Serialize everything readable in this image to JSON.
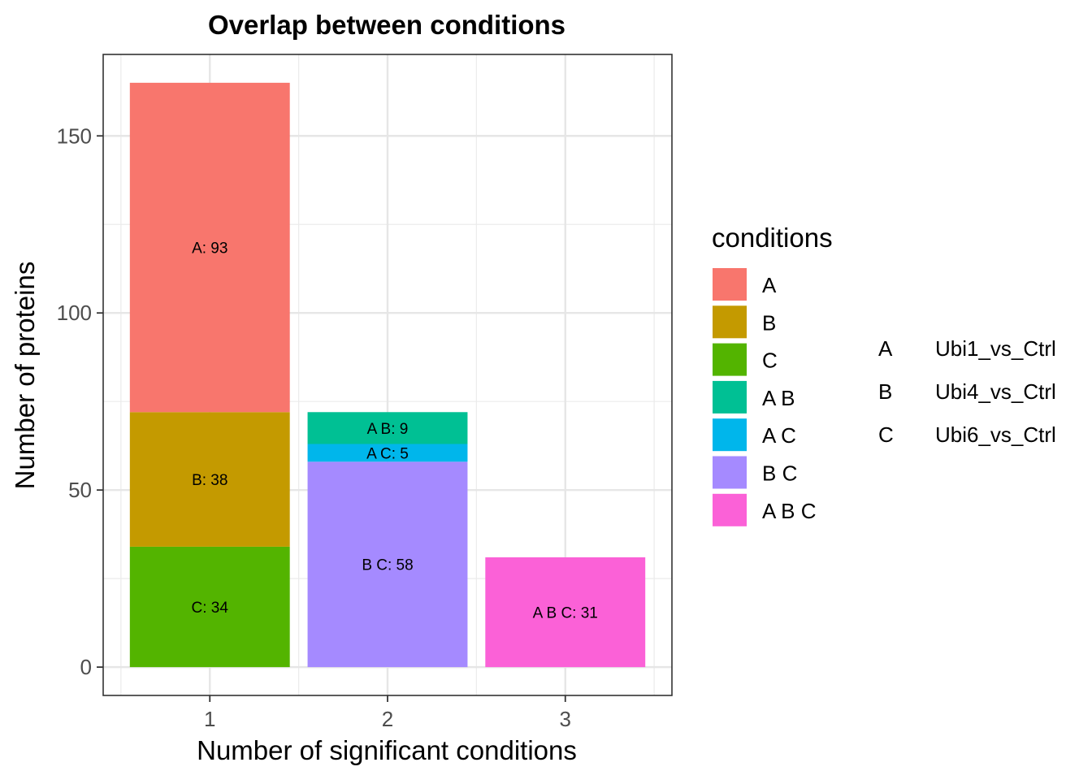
{
  "chart_data": {
    "type": "bar",
    "stacked": true,
    "title": "Overlap between conditions",
    "xlabel": "Number of significant conditions",
    "ylabel": "Number of proteins",
    "categories": [
      "1",
      "2",
      "3"
    ],
    "yticks": [
      0,
      50,
      100,
      150
    ],
    "ylim": [
      -8,
      173
    ],
    "grid": true,
    "legend_position": "right",
    "legend_title": "conditions",
    "segments": [
      {
        "category": "1",
        "condition": "C",
        "value": 34,
        "label": "C: 34"
      },
      {
        "category": "1",
        "condition": "B",
        "value": 38,
        "label": "B: 38"
      },
      {
        "category": "1",
        "condition": "A",
        "value": 93,
        "label": "A: 93"
      },
      {
        "category": "2",
        "condition": "B C",
        "value": 58,
        "label": "B C: 58"
      },
      {
        "category": "2",
        "condition": "A C",
        "value": 5,
        "label": "A C: 5"
      },
      {
        "category": "2",
        "condition": "A B",
        "value": 9,
        "label": "A B: 9"
      },
      {
        "category": "3",
        "condition": "A B C",
        "value": 31,
        "label": "A B C: 31"
      }
    ],
    "legend": [
      {
        "label": "A",
        "color": "#F8766D"
      },
      {
        "label": "B",
        "color": "#C49A00"
      },
      {
        "label": "C",
        "color": "#53B400"
      },
      {
        "label": "A B",
        "color": "#00C094"
      },
      {
        "label": "A C",
        "color": "#00B6EB"
      },
      {
        "label": "B C",
        "color": "#A58AFF"
      },
      {
        "label": "A B C",
        "color": "#FB61D7"
      }
    ],
    "key": [
      {
        "letter": "A",
        "name": "Ubi1_vs_Ctrl"
      },
      {
        "letter": "B",
        "name": "Ubi4_vs_Ctrl"
      },
      {
        "letter": "C",
        "name": "Ubi6_vs_Ctrl"
      }
    ]
  }
}
